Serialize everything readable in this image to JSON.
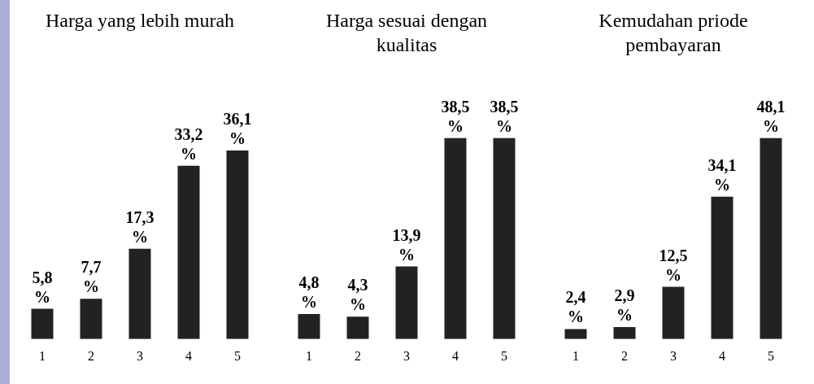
{
  "chart_data": [
    {
      "type": "bar",
      "title": "Harga yang lebih murah",
      "categories": [
        "1",
        "2",
        "3",
        "4",
        "5"
      ],
      "values": [
        5.8,
        7.7,
        17.3,
        33.2,
        36.1
      ],
      "value_labels": [
        "5,8 %",
        "7,7 %",
        "17,3 %",
        "33,2 %",
        "36,1 %"
      ],
      "color": "#222222",
      "grid": false,
      "legend": false
    },
    {
      "type": "bar",
      "title": "Harga sesuai dengan kualitas",
      "categories": [
        "1",
        "2",
        "3",
        "4",
        "5"
      ],
      "values": [
        4.8,
        4.3,
        13.9,
        38.5,
        38.5
      ],
      "value_labels": [
        "4,8 %",
        "4,3 %",
        "13,9 %",
        "38,5 %",
        "38,5 %"
      ],
      "color": "#222222",
      "grid": false,
      "legend": false
    },
    {
      "type": "bar",
      "title": "Kemudahan priode pembayaran",
      "categories": [
        "1",
        "2",
        "3",
        "4",
        "5"
      ],
      "values": [
        2.4,
        2.9,
        12.5,
        34.1,
        48.1
      ],
      "value_labels": [
        "2,4 %",
        "2,9 %",
        "12,5 %",
        "34,1 %",
        "48,1 %"
      ],
      "color": "#222222",
      "grid": false,
      "legend": false
    }
  ]
}
